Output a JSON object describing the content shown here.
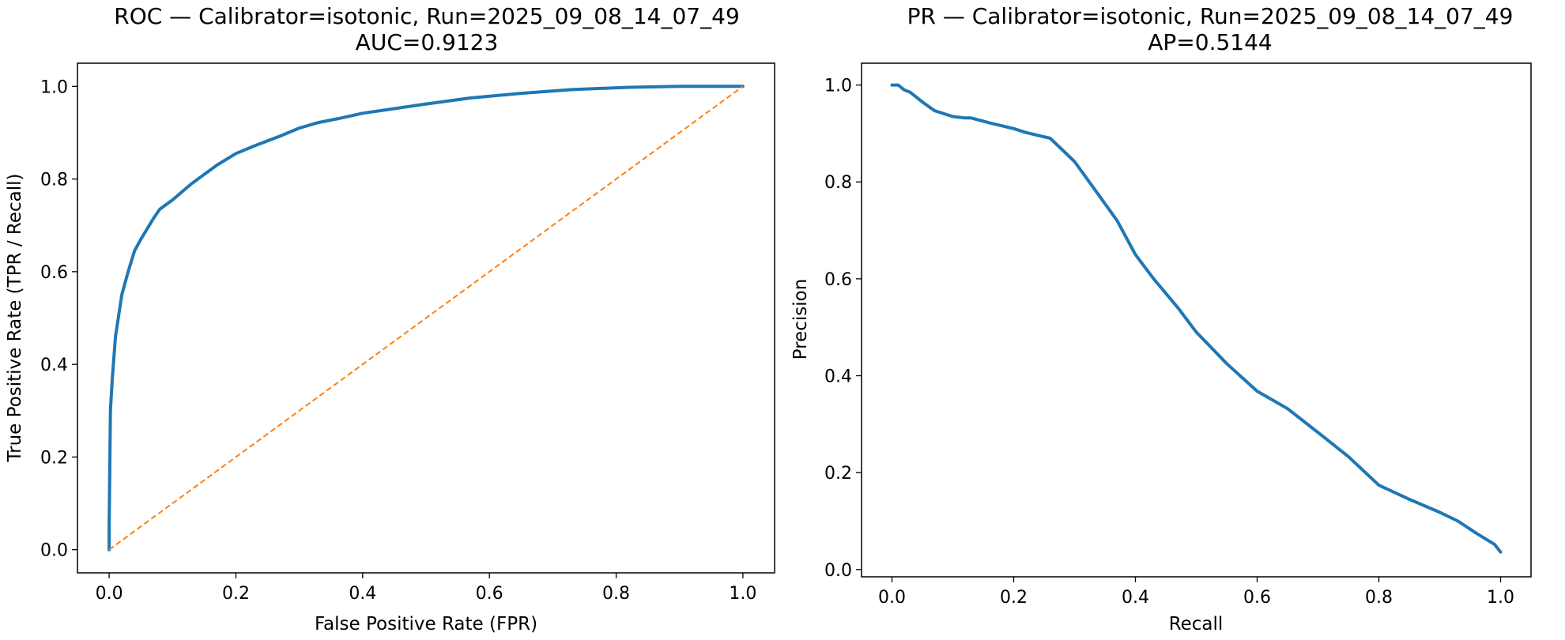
{
  "chart_data": [
    {
      "type": "line",
      "title": "ROC — Calibrator=isotonic, Run=2025_09_08_14_07_49",
      "subtitle": "AUC=0.9123",
      "xlabel": "False Positive Rate (FPR)",
      "ylabel": "True Positive Rate (TPR / Recall)",
      "xlim": [
        -0.05,
        1.05
      ],
      "ylim": [
        -0.05,
        1.05
      ],
      "xticks": [
        "0.0",
        "0.2",
        "0.4",
        "0.6",
        "0.8",
        "1.0"
      ],
      "yticks": [
        "0.0",
        "0.2",
        "0.4",
        "0.6",
        "0.8",
        "1.0"
      ],
      "grid": false,
      "series": [
        {
          "color": "#1f77b4",
          "style": "solid",
          "x": [
            0,
            0.0,
            0.002,
            0.005,
            0.01,
            0.02,
            0.03,
            0.04,
            0.05,
            0.07,
            0.08,
            0.1,
            0.13,
            0.17,
            0.2,
            0.23,
            0.27,
            0.3,
            0.33,
            0.36,
            0.4,
            0.45,
            0.5,
            0.57,
            0.65,
            0.73,
            0.82,
            0.9,
            1.0
          ],
          "y": [
            0,
            0.05,
            0.3,
            0.37,
            0.46,
            0.55,
            0.6,
            0.645,
            0.67,
            0.715,
            0.735,
            0.755,
            0.79,
            0.83,
            0.855,
            0.872,
            0.893,
            0.91,
            0.922,
            0.93,
            0.942,
            0.952,
            0.962,
            0.975,
            0.985,
            0.993,
            0.998,
            1.0,
            1.0
          ]
        },
        {
          "color": "#ff7f0e",
          "style": "dashed",
          "x": [
            0,
            1
          ],
          "y": [
            0,
            1
          ]
        }
      ]
    },
    {
      "type": "line",
      "title": "PR — Calibrator=isotonic, Run=2025_09_08_14_07_49",
      "subtitle": "AP=0.5144",
      "xlabel": "Recall",
      "ylabel": "Precision",
      "xlim": [
        -0.05,
        1.05
      ],
      "ylim": [
        -0.015,
        1.045
      ],
      "xticks": [
        "0.0",
        "0.2",
        "0.4",
        "0.6",
        "0.8",
        "1.0"
      ],
      "yticks": [
        "0.0",
        "0.2",
        "0.4",
        "0.6",
        "0.8",
        "1.0"
      ],
      "grid": false,
      "series": [
        {
          "color": "#1f77b4",
          "style": "solid",
          "x": [
            0.0,
            0.01,
            0.02,
            0.03,
            0.05,
            0.07,
            0.1,
            0.12,
            0.13,
            0.16,
            0.2,
            0.22,
            0.26,
            0.3,
            0.33,
            0.37,
            0.4,
            0.43,
            0.47,
            0.5,
            0.55,
            0.6,
            0.65,
            0.7,
            0.75,
            0.8,
            0.85,
            0.9,
            0.93,
            0.96,
            0.99,
            1.0
          ],
          "y": [
            1.0,
            1.0,
            0.99,
            0.985,
            0.965,
            0.947,
            0.935,
            0.932,
            0.932,
            0.922,
            0.91,
            0.902,
            0.89,
            0.842,
            0.79,
            0.72,
            0.65,
            0.6,
            0.54,
            0.49,
            0.425,
            0.368,
            0.332,
            0.283,
            0.233,
            0.174,
            0.145,
            0.118,
            0.1,
            0.075,
            0.052,
            0.036
          ]
        }
      ]
    }
  ]
}
